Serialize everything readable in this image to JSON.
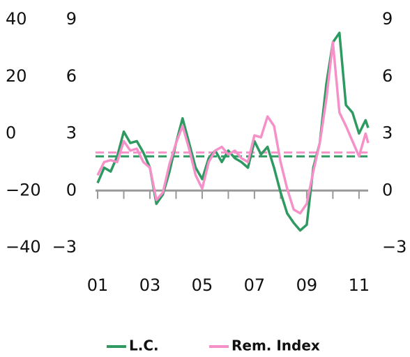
{
  "chart_data": {
    "type": "line",
    "series": [
      {
        "name": "L.C.",
        "color": "#2e9960",
        "x": [
          2001.0,
          2001.25,
          2001.5,
          2001.75,
          2002.0,
          2002.25,
          2002.5,
          2002.75,
          2003.0,
          2003.25,
          2003.5,
          2003.75,
          2004.0,
          2004.25,
          2004.5,
          2004.75,
          2005.0,
          2005.25,
          2005.5,
          2005.75,
          2006.0,
          2006.25,
          2006.5,
          2006.75,
          2007.0,
          2007.25,
          2007.5,
          2007.75,
          2008.0,
          2008.25,
          2008.5,
          2008.75,
          2009.0,
          2009.25,
          2009.5,
          2009.75,
          2010.0,
          2010.25,
          2010.5,
          2010.75,
          2011.0,
          2011.25,
          2011.35
        ],
        "values": [
          0.4,
          1.2,
          1.0,
          1.8,
          3.1,
          2.5,
          2.6,
          2.0,
          1.2,
          -0.7,
          -0.2,
          1.0,
          2.5,
          3.8,
          2.5,
          1.2,
          0.6,
          1.7,
          2.1,
          1.5,
          2.1,
          1.7,
          1.5,
          1.2,
          2.6,
          1.9,
          2.3,
          1.2,
          -0.1,
          -1.2,
          -1.7,
          -2.1,
          -1.8,
          1.2,
          2.5,
          5.6,
          7.8,
          8.3,
          4.5,
          4.1,
          3.0,
          3.7,
          3.3
        ]
      },
      {
        "name": "Rem. Index",
        "color": "#f590c8",
        "x": [
          2001.0,
          2001.25,
          2001.5,
          2001.75,
          2002.0,
          2002.25,
          2002.5,
          2002.75,
          2003.0,
          2003.25,
          2003.5,
          2003.75,
          2004.0,
          2004.25,
          2004.5,
          2004.75,
          2005.0,
          2005.25,
          2005.5,
          2005.75,
          2006.0,
          2006.25,
          2006.5,
          2006.75,
          2007.0,
          2007.25,
          2007.5,
          2007.75,
          2008.0,
          2008.25,
          2008.5,
          2008.75,
          2009.0,
          2009.25,
          2009.5,
          2009.75,
          2010.0,
          2010.25,
          2010.5,
          2010.75,
          2011.0,
          2011.25,
          2011.35
        ],
        "values": [
          0.8,
          1.5,
          1.6,
          1.5,
          2.6,
          2.1,
          2.2,
          1.5,
          1.2,
          -0.5,
          -0.1,
          1.4,
          2.5,
          3.4,
          2.2,
          0.8,
          0.1,
          1.5,
          2.1,
          2.3,
          1.9,
          2.1,
          1.7,
          1.5,
          2.9,
          2.8,
          3.9,
          3.4,
          1.5,
          0.1,
          -1.0,
          -1.2,
          -0.7,
          1.0,
          2.5,
          4.8,
          7.8,
          4.1,
          3.4,
          2.6,
          1.8,
          3.0,
          2.5
        ]
      }
    ],
    "reference_lines": [
      {
        "value": 1.8,
        "color": "#2e9960"
      },
      {
        "value": 2.0,
        "color": "#f590c8"
      }
    ],
    "xlim": [
      2001,
      2011.35
    ],
    "xticks": [
      {
        "value": 2001,
        "label": "01"
      },
      {
        "value": 2003,
        "label": "03"
      },
      {
        "value": 2005,
        "label": "05"
      },
      {
        "value": 2007,
        "label": "07"
      },
      {
        "value": 2009,
        "label": "09"
      },
      {
        "value": 2011,
        "label": "11"
      }
    ],
    "xminorticks": [
      2002,
      2004,
      2006,
      2008,
      2010
    ],
    "ylim": [
      -3,
      9
    ],
    "yticks": [
      {
        "value": -3,
        "label": "−3"
      },
      0,
      3,
      6,
      9
    ],
    "y2lim": [
      -3,
      9
    ],
    "y2ticks": [
      {
        "value": -3,
        "label": "−3"
      },
      0,
      3,
      6,
      9
    ],
    "y3lim": [
      -40,
      40
    ],
    "y3ticks": [
      {
        "value": -40,
        "label": "−40"
      },
      {
        "value": -20,
        "label": "−20"
      },
      0,
      20,
      40
    ]
  }
}
